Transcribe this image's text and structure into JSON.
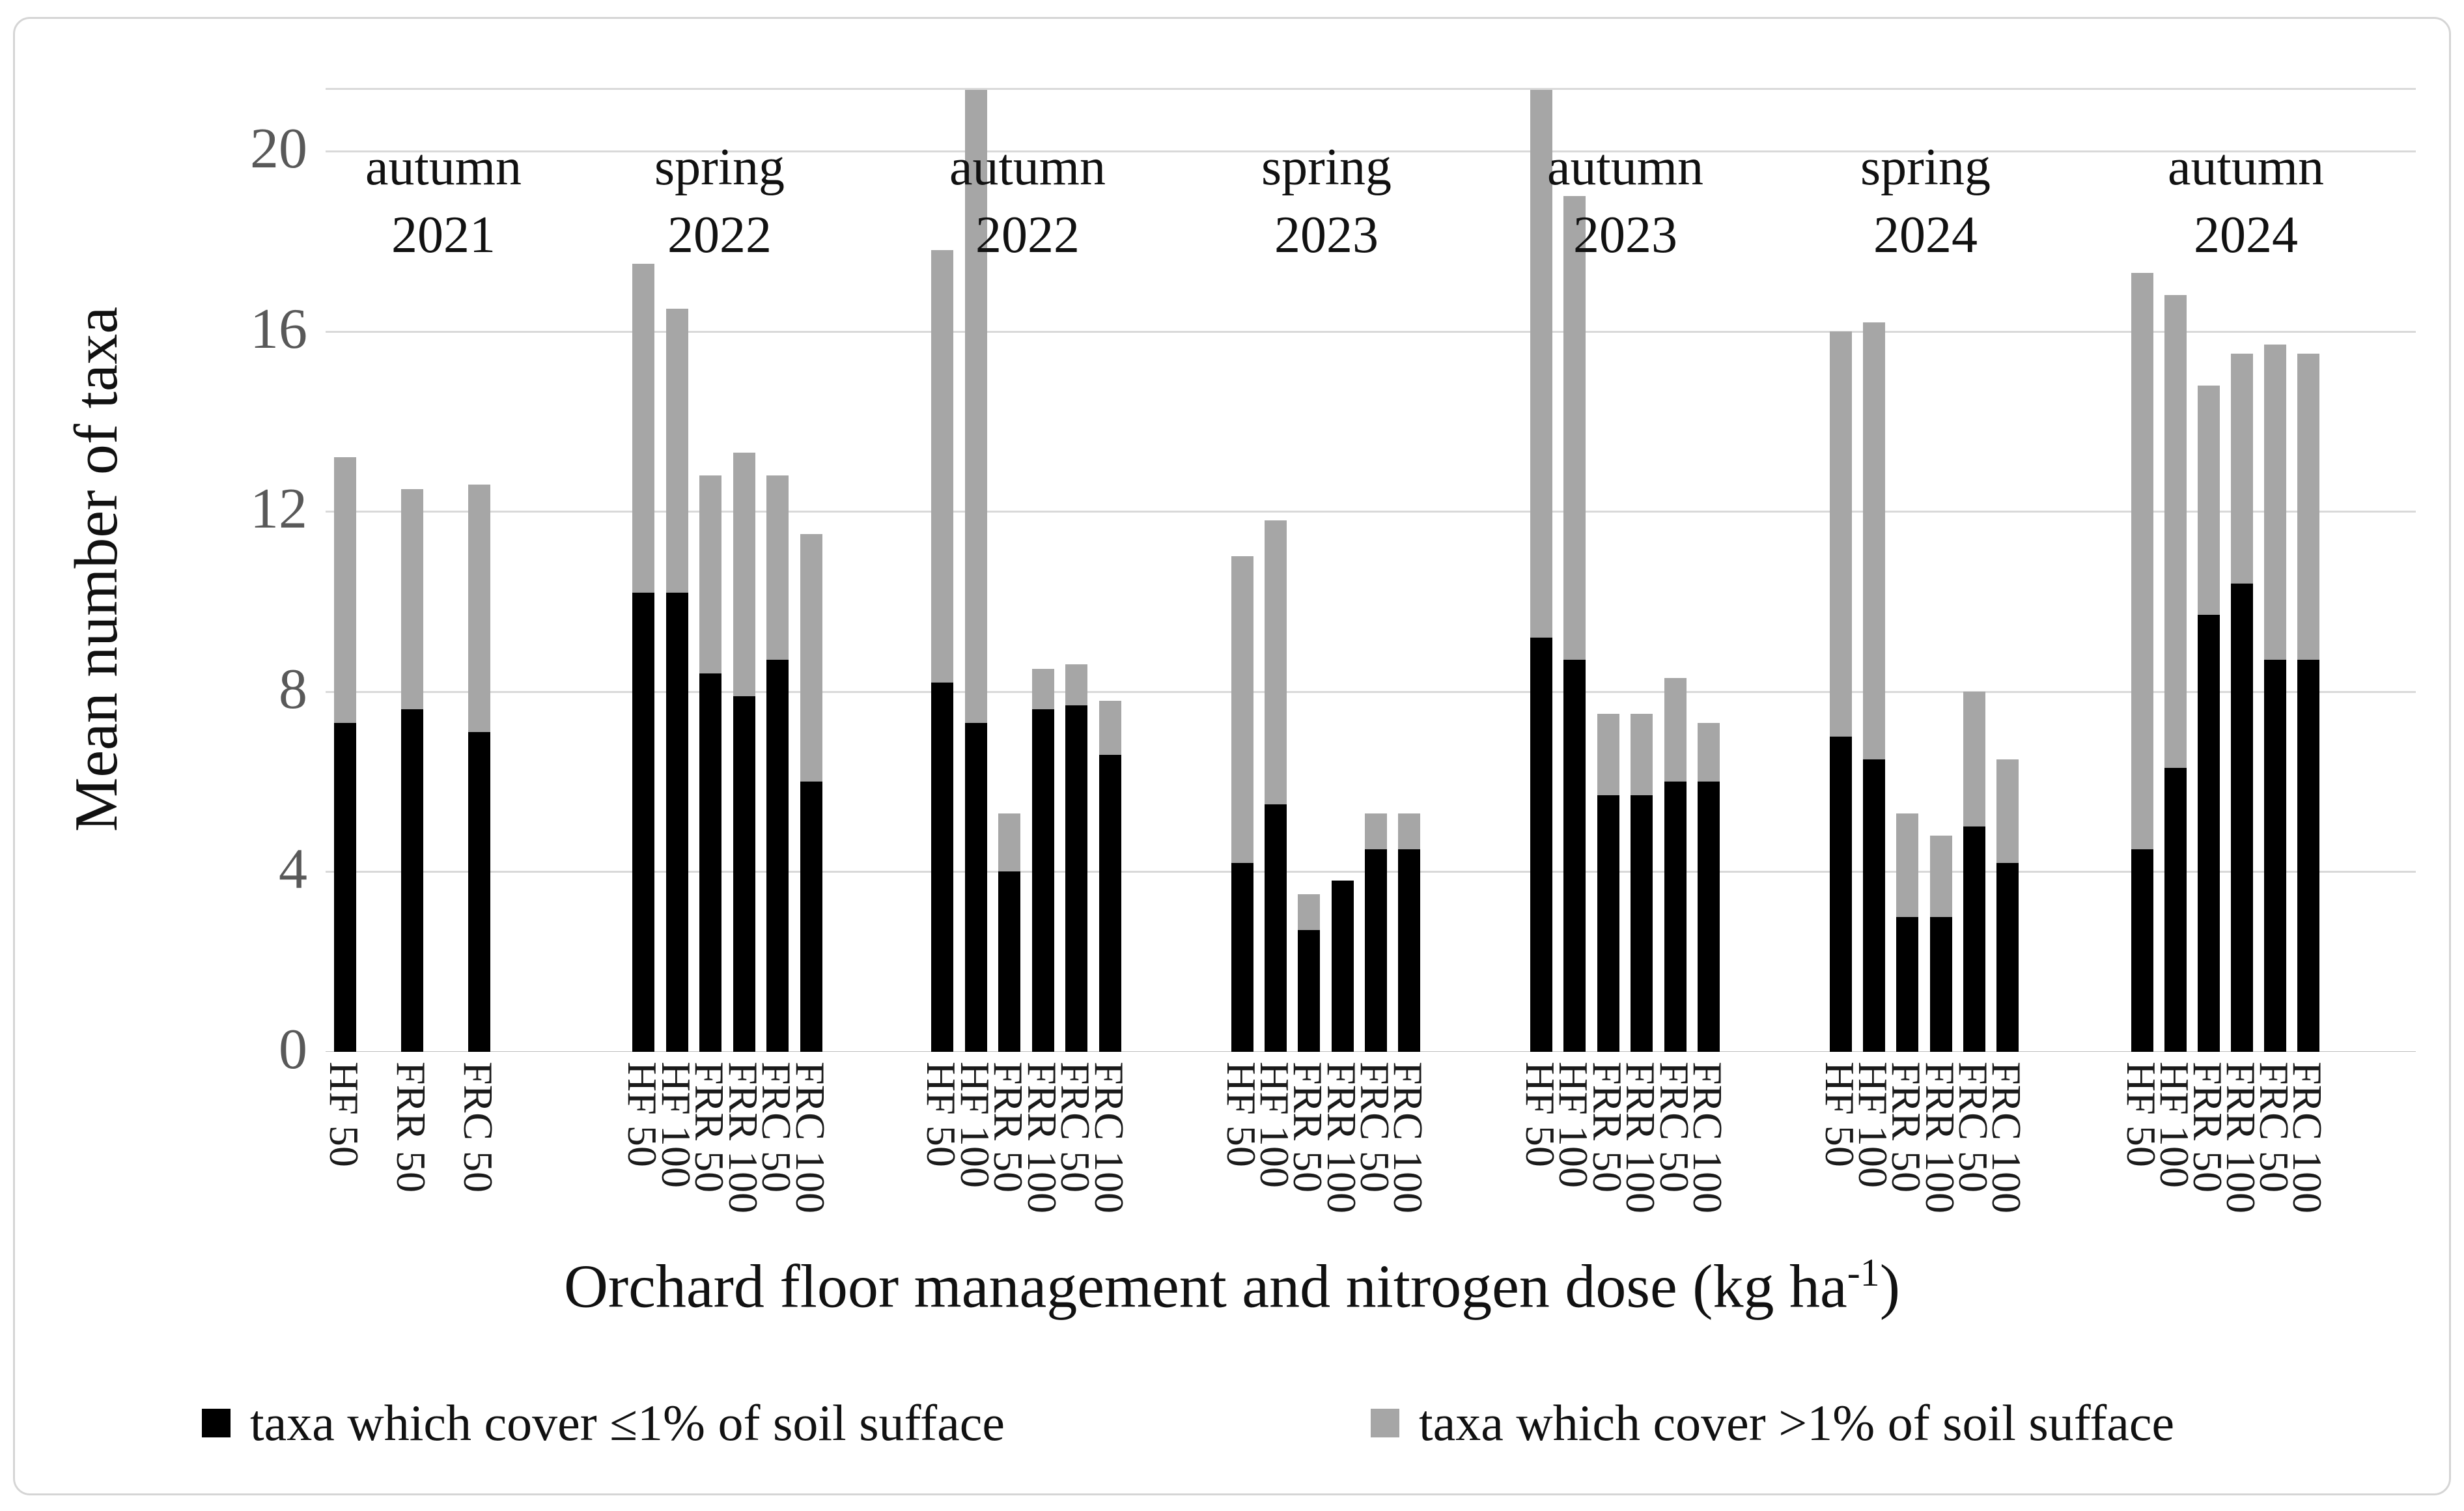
{
  "colors": {
    "bar_le1": "#000000",
    "bar_gt1": "#a6a6a6",
    "gridline": "#d9d9d9",
    "axis_line": "#bfbfbf",
    "tick_text": "#595959",
    "text": "#111111",
    "figure_border": "#d5d5d5"
  },
  "y_axis": {
    "title": "Mean number of taxa",
    "ticks": [
      0,
      4,
      8,
      12,
      16,
      20
    ],
    "max": 20
  },
  "x_axis": {
    "title_prefix": "Orchard floor management and nitrogen dose (kg ha",
    "title_sup": "-1",
    "title_suffix": ")",
    "title_full": "Orchard floor management and nitrogen dose (kg ha-1)"
  },
  "legend": {
    "items": [
      {
        "swatch": "#000000",
        "label": "taxa which cover ≤1% of soil sufface"
      },
      {
        "swatch": "#a6a6a6",
        "label": "taxa which cover >1% of soil sufface"
      }
    ]
  },
  "chart_data": {
    "type": "bar",
    "stacked": true,
    "title": "",
    "xlabel": "Orchard floor management and nitrogen dose (kg ha-1)",
    "ylabel": "Mean number of taxa",
    "ylim": [
      0,
      20
    ],
    "yticks": [
      0,
      4,
      8,
      12,
      16,
      20
    ],
    "grid": "horizontal",
    "legend_position": "bottom",
    "series_names": [
      "taxa which cover ≤1% of soil sufface",
      "taxa which cover >1% of soil sufface"
    ],
    "note": "gt1 segment = total - le1; bars marked clipped exceed the 20 axis maximum and are cut at the plot top (~21.4)",
    "groups": [
      {
        "season": "autumn",
        "year": "2021",
        "bars": [
          {
            "label": "HF 50",
            "le1": 7.3,
            "total": 13.2
          },
          {
            "label": "FRR 50",
            "le1": 7.6,
            "total": 12.5
          },
          {
            "label": "FRC 50",
            "le1": 7.1,
            "total": 12.6
          }
        ]
      },
      {
        "season": "spring",
        "year": "2022",
        "bars": [
          {
            "label": "HF 50",
            "le1": 10.2,
            "total": 17.5
          },
          {
            "label": "HF 100",
            "le1": 10.2,
            "total": 16.5
          },
          {
            "label": "FRR 50",
            "le1": 8.4,
            "total": 12.8
          },
          {
            "label": "FRR 100",
            "le1": 7.9,
            "total": 13.3
          },
          {
            "label": "FRC 50",
            "le1": 8.7,
            "total": 12.8
          },
          {
            "label": "FRC 100",
            "le1": 6.0,
            "total": 11.5
          }
        ]
      },
      {
        "season": "autumn",
        "year": "2022",
        "bars": [
          {
            "label": "HF 50",
            "le1": 8.2,
            "total": 17.8
          },
          {
            "label": "HF 100",
            "le1": 7.3,
            "total": 21.4,
            "clipped": true
          },
          {
            "label": "FRR 50",
            "le1": 4.0,
            "total": 5.3
          },
          {
            "label": "FRR 100",
            "le1": 7.6,
            "total": 8.5
          },
          {
            "label": "FRC 50",
            "le1": 7.7,
            "total": 8.6
          },
          {
            "label": "FRC 100",
            "le1": 6.6,
            "total": 7.8
          }
        ]
      },
      {
        "season": "spring",
        "year": "2023",
        "bars": [
          {
            "label": "HF 50",
            "le1": 4.2,
            "total": 11.0
          },
          {
            "label": "HF 100",
            "le1": 5.5,
            "total": 11.8
          },
          {
            "label": "FRR 50",
            "le1": 2.7,
            "total": 3.5
          },
          {
            "label": "FRR 100",
            "le1": 3.8,
            "total": 3.8
          },
          {
            "label": "FRC 50",
            "le1": 4.5,
            "total": 5.3
          },
          {
            "label": "FRC 100",
            "le1": 4.5,
            "total": 5.3
          }
        ]
      },
      {
        "season": "autumn",
        "year": "2023",
        "bars": [
          {
            "label": "HF 50",
            "le1": 9.2,
            "total": 21.4,
            "clipped": true
          },
          {
            "label": "HF 100",
            "le1": 8.7,
            "total": 19.0
          },
          {
            "label": "FRR 50",
            "le1": 5.7,
            "total": 7.5
          },
          {
            "label": "FRR 100",
            "le1": 5.7,
            "total": 7.5
          },
          {
            "label": "FRC 50",
            "le1": 6.0,
            "total": 8.3
          },
          {
            "label": "FRC 100",
            "le1": 6.0,
            "total": 7.3
          }
        ]
      },
      {
        "season": "spring",
        "year": "2024",
        "bars": [
          {
            "label": "HF 50",
            "le1": 7.0,
            "total": 16.0
          },
          {
            "label": "HF 100",
            "le1": 6.5,
            "total": 16.2
          },
          {
            "label": "FRR 50",
            "le1": 3.0,
            "total": 5.3
          },
          {
            "label": "FRR 100",
            "le1": 3.0,
            "total": 4.8
          },
          {
            "label": "FRC 50",
            "le1": 5.0,
            "total": 8.0
          },
          {
            "label": "FRC 100",
            "le1": 4.2,
            "total": 6.5
          }
        ]
      },
      {
        "season": "autumn",
        "year": "2024",
        "bars": [
          {
            "label": "HF 50",
            "le1": 4.5,
            "total": 17.3
          },
          {
            "label": "HF 100",
            "le1": 6.3,
            "total": 16.8
          },
          {
            "label": "FRR 50",
            "le1": 9.7,
            "total": 14.8
          },
          {
            "label": "FRR 100",
            "le1": 10.4,
            "total": 15.5
          },
          {
            "label": "FRC 50",
            "le1": 8.7,
            "total": 15.7
          },
          {
            "label": "FRC 100",
            "le1": 8.7,
            "total": 15.5
          }
        ]
      }
    ]
  }
}
